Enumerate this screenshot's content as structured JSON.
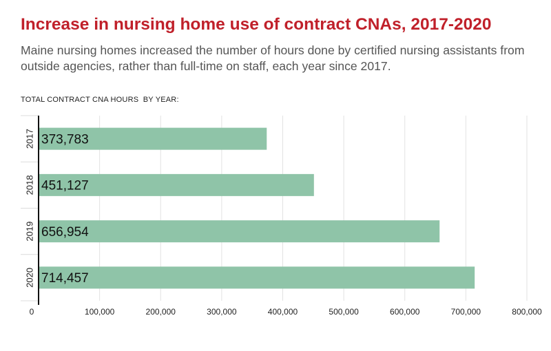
{
  "chart_data": {
    "type": "bar",
    "orientation": "horizontal",
    "title": "Increase in nursing home use of contract CNAs, 2017-2020",
    "subtitle": "Maine nursing homes increased the number of hours done by certified nursing assistants from outside agencies, rather than full-time on staff, each year since 2017.",
    "axis_caption": "TOTAL CONTRACT CNA HOURS  BY YEAR:",
    "categories": [
      "2017",
      "2018",
      "2019",
      "2020"
    ],
    "values": [
      373783,
      451127,
      656954,
      714457
    ],
    "value_labels": [
      "373,783",
      "451,127",
      "656,954",
      "714,457"
    ],
    "xlim": [
      0,
      800000
    ],
    "x_ticks": [
      0,
      100000,
      200000,
      300000,
      400000,
      500000,
      600000,
      700000,
      800000
    ],
    "x_tick_labels": [
      "0",
      "100,000",
      "200,000",
      "300,000",
      "400,000",
      "500,000",
      "600,000",
      "700,000",
      "800,000"
    ],
    "grid": true,
    "legend": "none",
    "bar_color": "#8fc4a8",
    "title_color": "#c0202a"
  }
}
